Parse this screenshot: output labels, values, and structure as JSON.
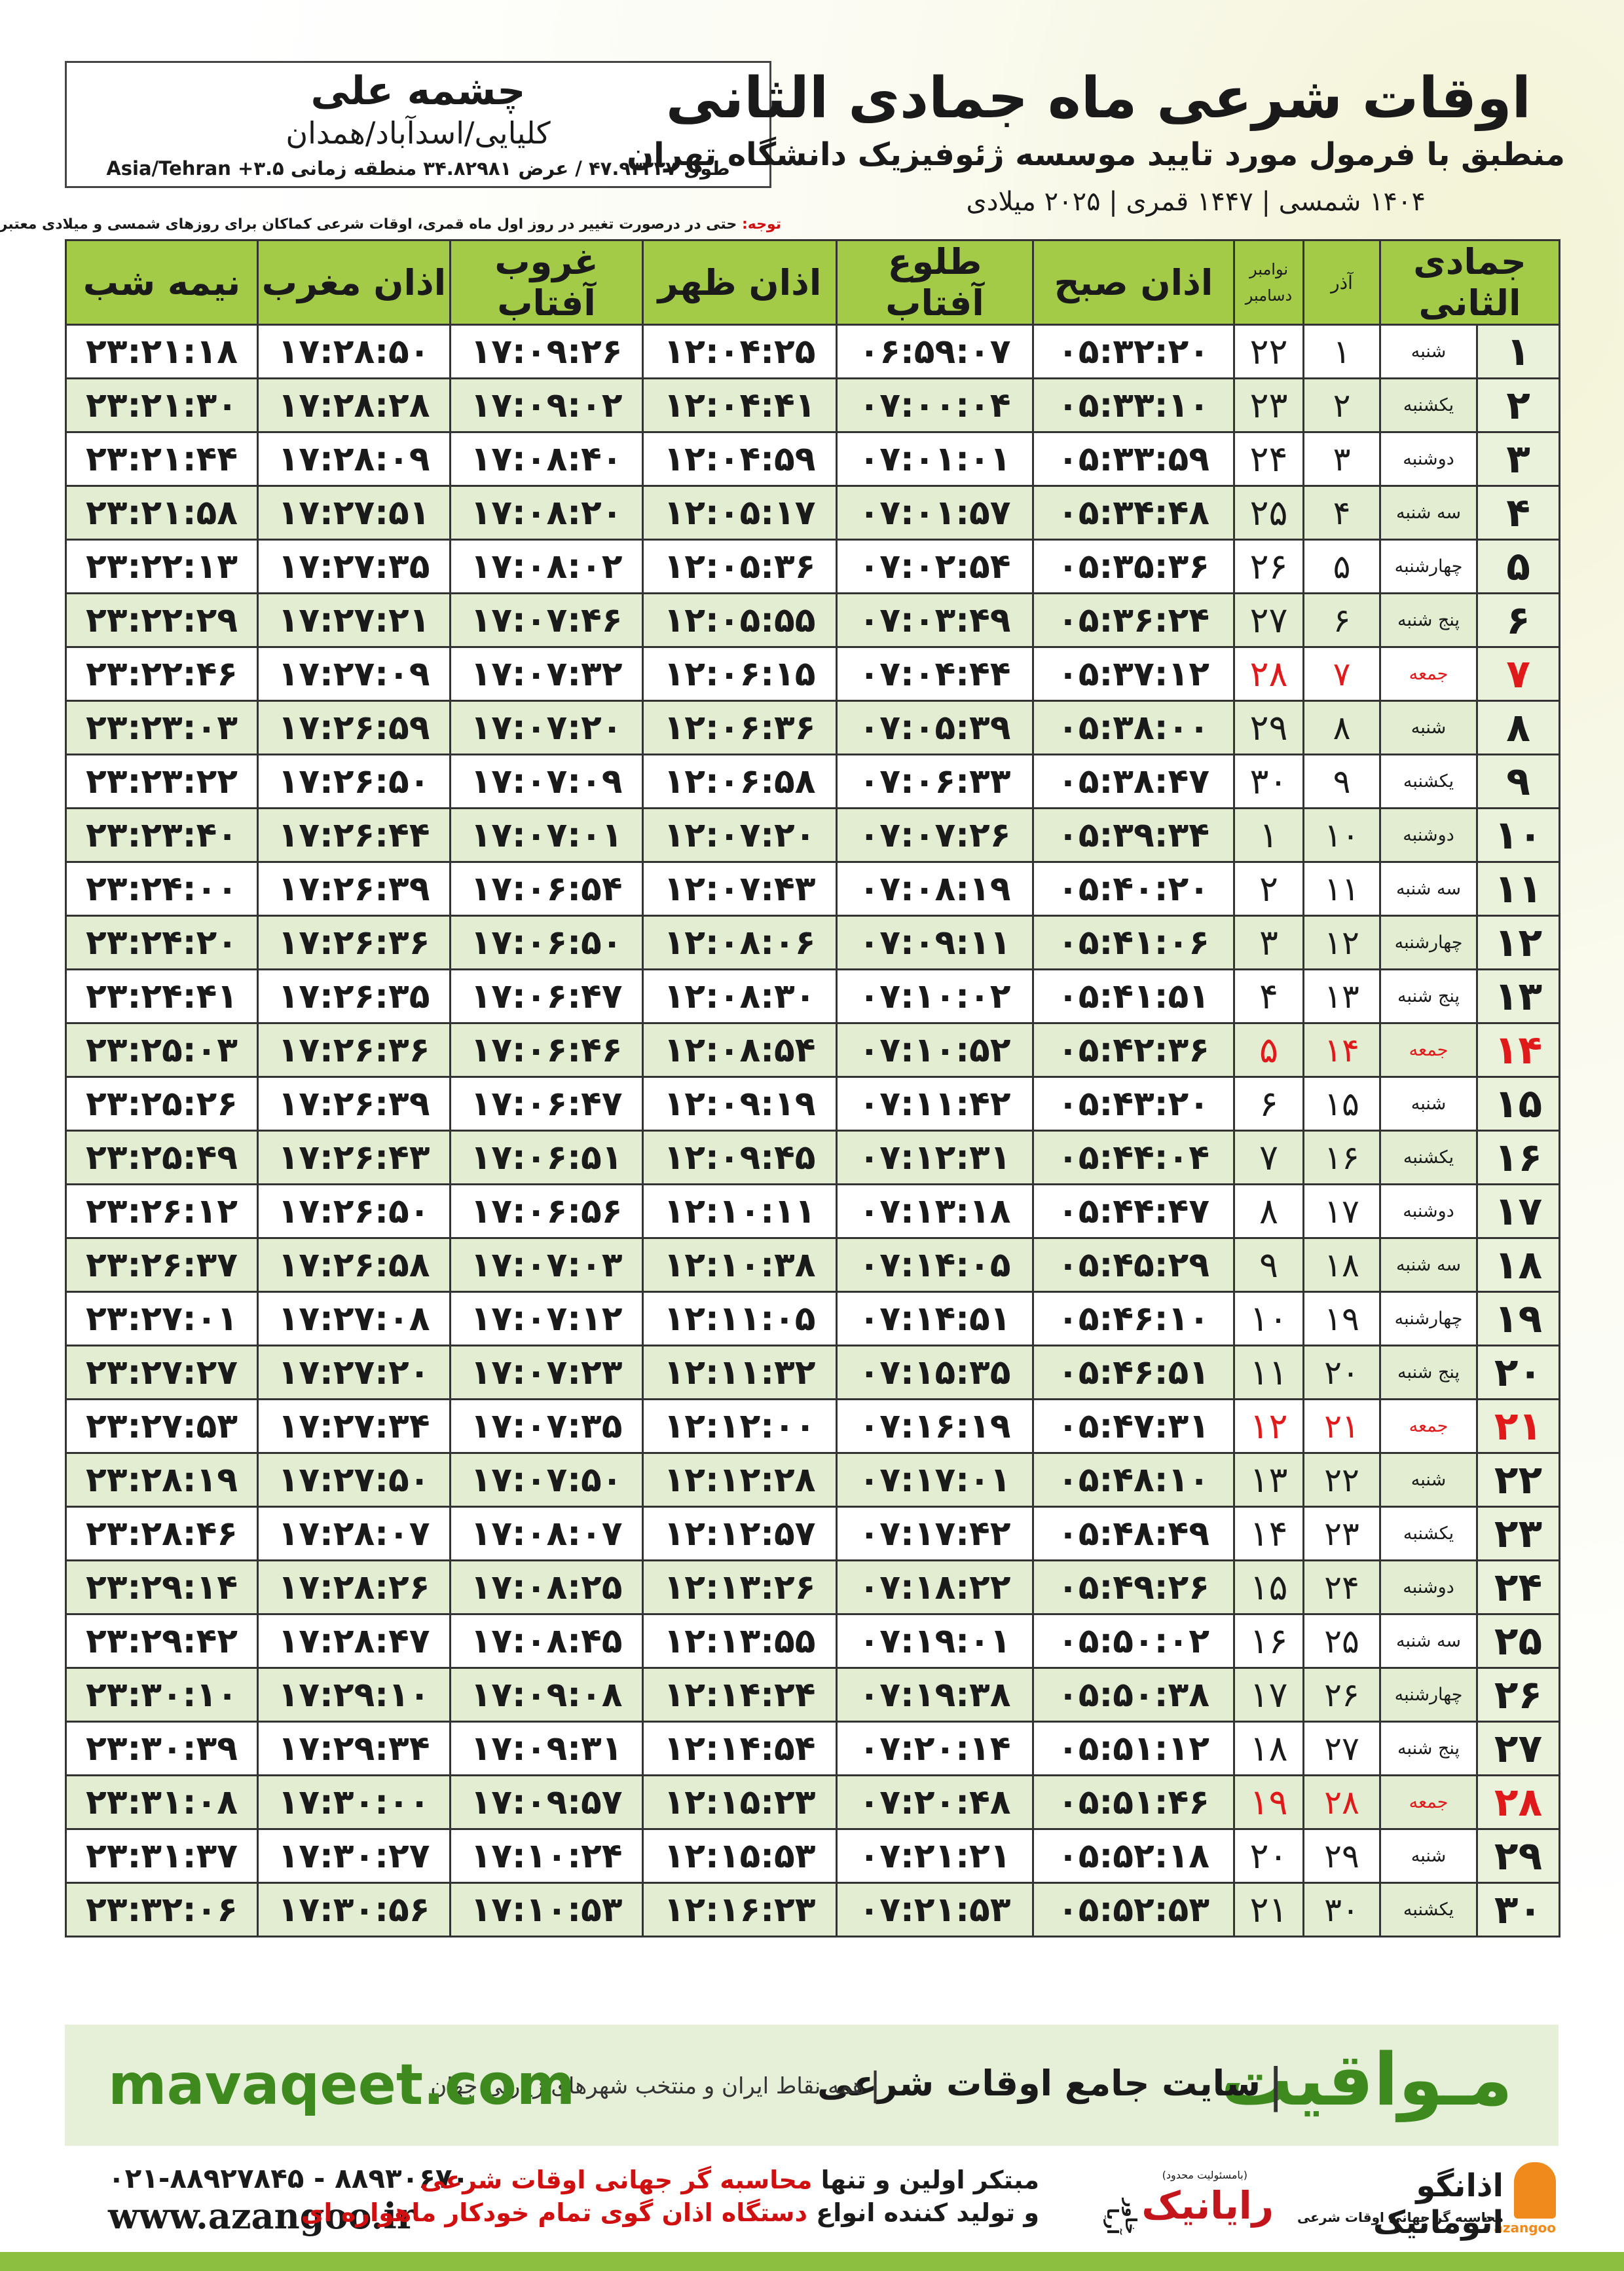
{
  "header": {
    "location": "چشمه علی",
    "region": "کلیایی/اسدآباد/همدان",
    "coords": "طول ۴۷.۹۳۲۲۷ / عرض ۳۴.۸۲۹۸۱ منطقه زمانی ۳.۵+ Asia/Tehran",
    "title": "اوقات شرعی ماه جمادی الثانی",
    "subtitle": "منطبق با فرمول مورد تایید موسسه ژئوفیزیک دانشگاه تهران",
    "dates": "۱۴۰۴ شمسی | ۱۴۴۷ قمری | ۲۰۲۵ میلادی"
  },
  "note": {
    "label": "توجه:",
    "text": "حتی در درصورت تغییر در روز اول ماه قمری، اوقات شرعی کماکان برای روزهای شمسی و میلادی معتبر است."
  },
  "table": {
    "header": {
      "hijri": "جمادی الثانی",
      "azar": "آذر",
      "gregorian": [
        "نوامبر",
        "دسامبر"
      ],
      "times": [
        "اذان صبح",
        "طلوع آفتاب",
        "اذان ظهر",
        "غروب آفتاب",
        "اذان مغرب",
        "نیمه شب"
      ]
    },
    "rows": [
      [
        "۱",
        "شنبه",
        "۱",
        "۲۲",
        "۰۵:۳۲:۲۰",
        "۰۶:۵۹:۰۷",
        "۱۲:۰۴:۲۵",
        "۱۷:۰۹:۲۶",
        "۱۷:۲۸:۵۰",
        "۲۳:۲۱:۱۸"
      ],
      [
        "۲",
        "یکشنبه",
        "۲",
        "۲۳",
        "۰۵:۳۳:۱۰",
        "۰۷:۰۰:۰۴",
        "۱۲:۰۴:۴۱",
        "۱۷:۰۹:۰۲",
        "۱۷:۲۸:۲۸",
        "۲۳:۲۱:۳۰"
      ],
      [
        "۳",
        "دوشنبه",
        "۳",
        "۲۴",
        "۰۵:۳۳:۵۹",
        "۰۷:۰۱:۰۱",
        "۱۲:۰۴:۵۹",
        "۱۷:۰۸:۴۰",
        "۱۷:۲۸:۰۹",
        "۲۳:۲۱:۴۴"
      ],
      [
        "۴",
        "سه شنبه",
        "۴",
        "۲۵",
        "۰۵:۳۴:۴۸",
        "۰۷:۰۱:۵۷",
        "۱۲:۰۵:۱۷",
        "۱۷:۰۸:۲۰",
        "۱۷:۲۷:۵۱",
        "۲۳:۲۱:۵۸"
      ],
      [
        "۵",
        "چهارشنبه",
        "۵",
        "۲۶",
        "۰۵:۳۵:۳۶",
        "۰۷:۰۲:۵۴",
        "۱۲:۰۵:۳۶",
        "۱۷:۰۸:۰۲",
        "۱۷:۲۷:۳۵",
        "۲۳:۲۲:۱۳"
      ],
      [
        "۶",
        "پنج شنبه",
        "۶",
        "۲۷",
        "۰۵:۳۶:۲۴",
        "۰۷:۰۳:۴۹",
        "۱۲:۰۵:۵۵",
        "۱۷:۰۷:۴۶",
        "۱۷:۲۷:۲۱",
        "۲۳:۲۲:۲۹"
      ],
      [
        "۷",
        "جمعه",
        "۷",
        "۲۸",
        "۰۵:۳۷:۱۲",
        "۰۷:۰۴:۴۴",
        "۱۲:۰۶:۱۵",
        "۱۷:۰۷:۳۲",
        "۱۷:۲۷:۰۹",
        "۲۳:۲۲:۴۶"
      ],
      [
        "۸",
        "شنبه",
        "۸",
        "۲۹",
        "۰۵:۳۸:۰۰",
        "۰۷:۰۵:۳۹",
        "۱۲:۰۶:۳۶",
        "۱۷:۰۷:۲۰",
        "۱۷:۲۶:۵۹",
        "۲۳:۲۳:۰۳"
      ],
      [
        "۹",
        "یکشنبه",
        "۹",
        "۳۰",
        "۰۵:۳۸:۴۷",
        "۰۷:۰۶:۳۳",
        "۱۲:۰۶:۵۸",
        "۱۷:۰۷:۰۹",
        "۱۷:۲۶:۵۰",
        "۲۳:۲۳:۲۲"
      ],
      [
        "۱۰",
        "دوشنبه",
        "۱۰",
        "۱",
        "۰۵:۳۹:۳۴",
        "۰۷:۰۷:۲۶",
        "۱۲:۰۷:۲۰",
        "۱۷:۰۷:۰۱",
        "۱۷:۲۶:۴۴",
        "۲۳:۲۳:۴۰"
      ],
      [
        "۱۱",
        "سه شنبه",
        "۱۱",
        "۲",
        "۰۵:۴۰:۲۰",
        "۰۷:۰۸:۱۹",
        "۱۲:۰۷:۴۳",
        "۱۷:۰۶:۵۴",
        "۱۷:۲۶:۳۹",
        "۲۳:۲۴:۰۰"
      ],
      [
        "۱۲",
        "چهارشنبه",
        "۱۲",
        "۳",
        "۰۵:۴۱:۰۶",
        "۰۷:۰۹:۱۱",
        "۱۲:۰۸:۰۶",
        "۱۷:۰۶:۵۰",
        "۱۷:۲۶:۳۶",
        "۲۳:۲۴:۲۰"
      ],
      [
        "۱۳",
        "پنج شنبه",
        "۱۳",
        "۴",
        "۰۵:۴۱:۵۱",
        "۰۷:۱۰:۰۲",
        "۱۲:۰۸:۳۰",
        "۱۷:۰۶:۴۷",
        "۱۷:۲۶:۳۵",
        "۲۳:۲۴:۴۱"
      ],
      [
        "۱۴",
        "جمعه",
        "۱۴",
        "۵",
        "۰۵:۴۲:۳۶",
        "۰۷:۱۰:۵۲",
        "۱۲:۰۸:۵۴",
        "۱۷:۰۶:۴۶",
        "۱۷:۲۶:۳۶",
        "۲۳:۲۵:۰۳"
      ],
      [
        "۱۵",
        "شنبه",
        "۱۵",
        "۶",
        "۰۵:۴۳:۲۰",
        "۰۷:۱۱:۴۲",
        "۱۲:۰۹:۱۹",
        "۱۷:۰۶:۴۷",
        "۱۷:۲۶:۳۹",
        "۲۳:۲۵:۲۶"
      ],
      [
        "۱۶",
        "یکشنبه",
        "۱۶",
        "۷",
        "۰۵:۴۴:۰۴",
        "۰۷:۱۲:۳۱",
        "۱۲:۰۹:۴۵",
        "۱۷:۰۶:۵۱",
        "۱۷:۲۶:۴۳",
        "۲۳:۲۵:۴۹"
      ],
      [
        "۱۷",
        "دوشنبه",
        "۱۷",
        "۸",
        "۰۵:۴۴:۴۷",
        "۰۷:۱۳:۱۸",
        "۱۲:۱۰:۱۱",
        "۱۷:۰۶:۵۶",
        "۱۷:۲۶:۵۰",
        "۲۳:۲۶:۱۲"
      ],
      [
        "۱۸",
        "سه شنبه",
        "۱۸",
        "۹",
        "۰۵:۴۵:۲۹",
        "۰۷:۱۴:۰۵",
        "۱۲:۱۰:۳۸",
        "۱۷:۰۷:۰۳",
        "۱۷:۲۶:۵۸",
        "۲۳:۲۶:۳۷"
      ],
      [
        "۱۹",
        "چهارشنبه",
        "۱۹",
        "۱۰",
        "۰۵:۴۶:۱۰",
        "۰۷:۱۴:۵۱",
        "۱۲:۱۱:۰۵",
        "۱۷:۰۷:۱۲",
        "۱۷:۲۷:۰۸",
        "۲۳:۲۷:۰۱"
      ],
      [
        "۲۰",
        "پنج شنبه",
        "۲۰",
        "۱۱",
        "۰۵:۴۶:۵۱",
        "۰۷:۱۵:۳۵",
        "۱۲:۱۱:۳۲",
        "۱۷:۰۷:۲۳",
        "۱۷:۲۷:۲۰",
        "۲۳:۲۷:۲۷"
      ],
      [
        "۲۱",
        "جمعه",
        "۲۱",
        "۱۲",
        "۰۵:۴۷:۳۱",
        "۰۷:۱۶:۱۹",
        "۱۲:۱۲:۰۰",
        "۱۷:۰۷:۳۵",
        "۱۷:۲۷:۳۴",
        "۲۳:۲۷:۵۳"
      ],
      [
        "۲۲",
        "شنبه",
        "۲۲",
        "۱۳",
        "۰۵:۴۸:۱۰",
        "۰۷:۱۷:۰۱",
        "۱۲:۱۲:۲۸",
        "۱۷:۰۷:۵۰",
        "۱۷:۲۷:۵۰",
        "۲۳:۲۸:۱۹"
      ],
      [
        "۲۳",
        "یکشنبه",
        "۲۳",
        "۱۴",
        "۰۵:۴۸:۴۹",
        "۰۷:۱۷:۴۲",
        "۱۲:۱۲:۵۷",
        "۱۷:۰۸:۰۷",
        "۱۷:۲۸:۰۷",
        "۲۳:۲۸:۴۶"
      ],
      [
        "۲۴",
        "دوشنبه",
        "۲۴",
        "۱۵",
        "۰۵:۴۹:۲۶",
        "۰۷:۱۸:۲۲",
        "۱۲:۱۳:۲۶",
        "۱۷:۰۸:۲۵",
        "۱۷:۲۸:۲۶",
        "۲۳:۲۹:۱۴"
      ],
      [
        "۲۵",
        "سه شنبه",
        "۲۵",
        "۱۶",
        "۰۵:۵۰:۰۲",
        "۰۷:۱۹:۰۱",
        "۱۲:۱۳:۵۵",
        "۱۷:۰۸:۴۵",
        "۱۷:۲۸:۴۷",
        "۲۳:۲۹:۴۲"
      ],
      [
        "۲۶",
        "چهارشنبه",
        "۲۶",
        "۱۷",
        "۰۵:۵۰:۳۸",
        "۰۷:۱۹:۳۸",
        "۱۲:۱۴:۲۴",
        "۱۷:۰۹:۰۸",
        "۱۷:۲۹:۱۰",
        "۲۳:۳۰:۱۰"
      ],
      [
        "۲۷",
        "پنج شنبه",
        "۲۷",
        "۱۸",
        "۰۵:۵۱:۱۲",
        "۰۷:۲۰:۱۴",
        "۱۲:۱۴:۵۴",
        "۱۷:۰۹:۳۱",
        "۱۷:۲۹:۳۴",
        "۲۳:۳۰:۳۹"
      ],
      [
        "۲۸",
        "جمعه",
        "۲۸",
        "۱۹",
        "۰۵:۵۱:۴۶",
        "۰۷:۲۰:۴۸",
        "۱۲:۱۵:۲۳",
        "۱۷:۰۹:۵۷",
        "۱۷:۳۰:۰۰",
        "۲۳:۳۱:۰۸"
      ],
      [
        "۲۹",
        "شنبه",
        "۲۹",
        "۲۰",
        "۰۵:۵۲:۱۸",
        "۰۷:۲۱:۲۱",
        "۱۲:۱۵:۵۳",
        "۱۷:۱۰:۲۴",
        "۱۷:۳۰:۲۷",
        "۲۳:۳۱:۳۷"
      ],
      [
        "۳۰",
        "یکشنبه",
        "۳۰",
        "۲۱",
        "۰۵:۵۲:۵۳",
        "۰۷:۲۱:۵۳",
        "۱۲:۱۶:۲۳",
        "۱۷:۱۰:۵۳",
        "۱۷:۳۰:۵۶",
        "۲۳:۳۲:۰۶"
      ]
    ]
  },
  "footer": {
    "brand": "مـواقیت",
    "separator": "|",
    "tagline": "سایت جامع اوقات شرعی",
    "subtitle": "همه نقاط ایران و منتخب شهرهای زیارتی جهان",
    "url": "mavaqeet.com"
  },
  "contact": {
    "phone": "۰۲۱-۸۸۹۲۷۸۴۵ - ۸۸۹۳۰۶۷۰",
    "website": "www.azangoo.ir",
    "line1": [
      "مبتکر اولین و تنها",
      "محاسبه گر جهانی اوقات شرعی"
    ],
    "line2": [
      "و تولید کننده انواع",
      "دستگاه اذان گوی تمام خودکار ماهواره ای"
    ]
  },
  "logos": {
    "rayanik": "رایانیک",
    "khavar": "خاور آریا",
    "limited": "(بامسئولیت محدود)",
    "azangoo_fa": "اذانگو اتوماتیک",
    "azangoo_sub": "محاسبه گر جهانی اوقات شرعی",
    "azangoo_en": "azangoo"
  }
}
